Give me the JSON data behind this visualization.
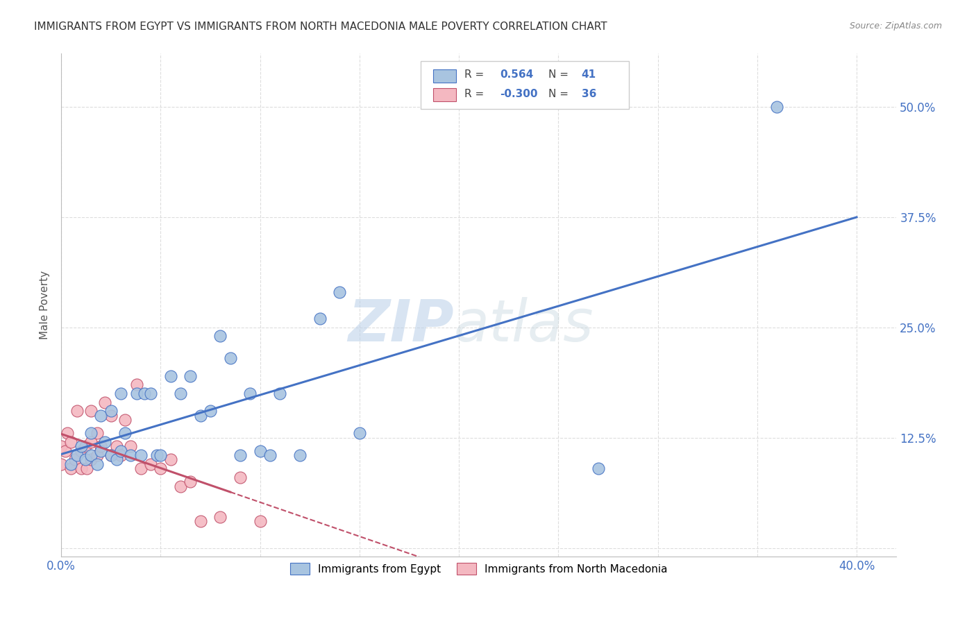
{
  "title": "IMMIGRANTS FROM EGYPT VS IMMIGRANTS FROM NORTH MACEDONIA MALE POVERTY CORRELATION CHART",
  "source": "Source: ZipAtlas.com",
  "ylabel": "Male Poverty",
  "xlim": [
    0.0,
    0.42
  ],
  "ylim": [
    -0.01,
    0.56
  ],
  "xticks": [
    0.0,
    0.05,
    0.1,
    0.15,
    0.2,
    0.25,
    0.3,
    0.35,
    0.4
  ],
  "xticklabels": [
    "0.0%",
    "",
    "",
    "",
    "",
    "",
    "",
    "",
    "40.0%"
  ],
  "ytick_positions": [
    0.0,
    0.125,
    0.25,
    0.375,
    0.5
  ],
  "yticklabels_right": [
    "",
    "12.5%",
    "25.0%",
    "37.5%",
    "50.0%"
  ],
  "egypt_color": "#a8c4e0",
  "egypt_line_color": "#4472c4",
  "north_mac_color": "#f4b8c1",
  "north_mac_line_color": "#c0506a",
  "R_egypt": 0.564,
  "N_egypt": 41,
  "R_north_mac": -0.3,
  "N_north_mac": 36,
  "watermark_zip": "ZIP",
  "watermark_atlas": "atlas",
  "bg_color": "#ffffff",
  "grid_color": "#dddddd",
  "title_color": "#333333",
  "tick_label_color": "#4472c4",
  "egypt_points_x": [
    0.005,
    0.008,
    0.01,
    0.012,
    0.015,
    0.015,
    0.018,
    0.02,
    0.02,
    0.022,
    0.025,
    0.025,
    0.028,
    0.03,
    0.03,
    0.032,
    0.035,
    0.038,
    0.04,
    0.042,
    0.045,
    0.048,
    0.05,
    0.055,
    0.06,
    0.065,
    0.07,
    0.075,
    0.08,
    0.085,
    0.09,
    0.095,
    0.1,
    0.105,
    0.11,
    0.12,
    0.13,
    0.14,
    0.15,
    0.27,
    0.36
  ],
  "egypt_points_y": [
    0.095,
    0.105,
    0.115,
    0.1,
    0.105,
    0.13,
    0.095,
    0.11,
    0.15,
    0.12,
    0.105,
    0.155,
    0.1,
    0.11,
    0.175,
    0.13,
    0.105,
    0.175,
    0.105,
    0.175,
    0.175,
    0.105,
    0.105,
    0.195,
    0.175,
    0.195,
    0.15,
    0.155,
    0.24,
    0.215,
    0.105,
    0.175,
    0.11,
    0.105,
    0.175,
    0.105,
    0.26,
    0.29,
    0.13,
    0.09,
    0.5
  ],
  "north_mac_points_x": [
    0.0,
    0.0,
    0.002,
    0.003,
    0.005,
    0.005,
    0.007,
    0.008,
    0.01,
    0.01,
    0.012,
    0.013,
    0.015,
    0.015,
    0.015,
    0.018,
    0.018,
    0.02,
    0.022,
    0.025,
    0.025,
    0.028,
    0.03,
    0.032,
    0.035,
    0.038,
    0.04,
    0.045,
    0.05,
    0.055,
    0.06,
    0.065,
    0.07,
    0.08,
    0.09,
    0.1
  ],
  "north_mac_points_y": [
    0.095,
    0.115,
    0.11,
    0.13,
    0.09,
    0.12,
    0.1,
    0.155,
    0.09,
    0.11,
    0.115,
    0.09,
    0.1,
    0.12,
    0.155,
    0.105,
    0.13,
    0.115,
    0.165,
    0.105,
    0.15,
    0.115,
    0.105,
    0.145,
    0.115,
    0.185,
    0.09,
    0.095,
    0.09,
    0.1,
    0.07,
    0.075,
    0.03,
    0.035,
    0.08,
    0.03
  ],
  "north_mac_trend_end_solid": 0.085,
  "north_mac_trend_end_dashed": 0.18
}
